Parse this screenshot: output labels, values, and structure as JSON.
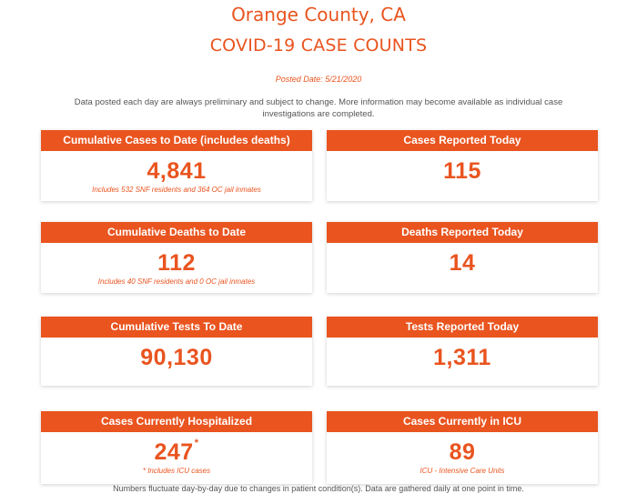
{
  "header": {
    "county": "Orange County, CA",
    "title": "COVID-19 CASE COUNTS",
    "posted_date": "Posted Date: 5/21/2020",
    "disclaimer": "Data posted each day are always preliminary and subject to change. More information may become available as individual case investigations are completed."
  },
  "cards": {
    "cumulative_cases": {
      "label": "Cumulative Cases to Date (includes deaths)",
      "value": "4,841",
      "note": "Includes 532 SNF residents and 364 OC jail inmates"
    },
    "cases_today": {
      "label": "Cases Reported Today",
      "value": "115"
    },
    "cumulative_deaths": {
      "label": "Cumulative Deaths to Date",
      "value": "112",
      "note": "Includes 40 SNF residents and 0 OC jail inmates"
    },
    "deaths_today": {
      "label": "Deaths Reported Today",
      "value": "14"
    },
    "cumulative_tests": {
      "label": "Cumulative Tests To Date",
      "value": "90,130"
    },
    "tests_today": {
      "label": "Tests Reported Today",
      "value": "1,311"
    },
    "hospitalized": {
      "label": "Cases Currently Hospitalized",
      "value": "247",
      "asterisk": "*",
      "note": "* Includes ICU cases"
    },
    "icu": {
      "label": "Cases Currently in ICU",
      "value": "89",
      "note": "ICU - Intensive Care Units"
    }
  },
  "footer": "Numbers fluctuate day-by-day due to changes in patient condition(s). Data are gathered daily at one point in time.",
  "colors": {
    "accent": "#e9541f",
    "text": "#555555"
  }
}
